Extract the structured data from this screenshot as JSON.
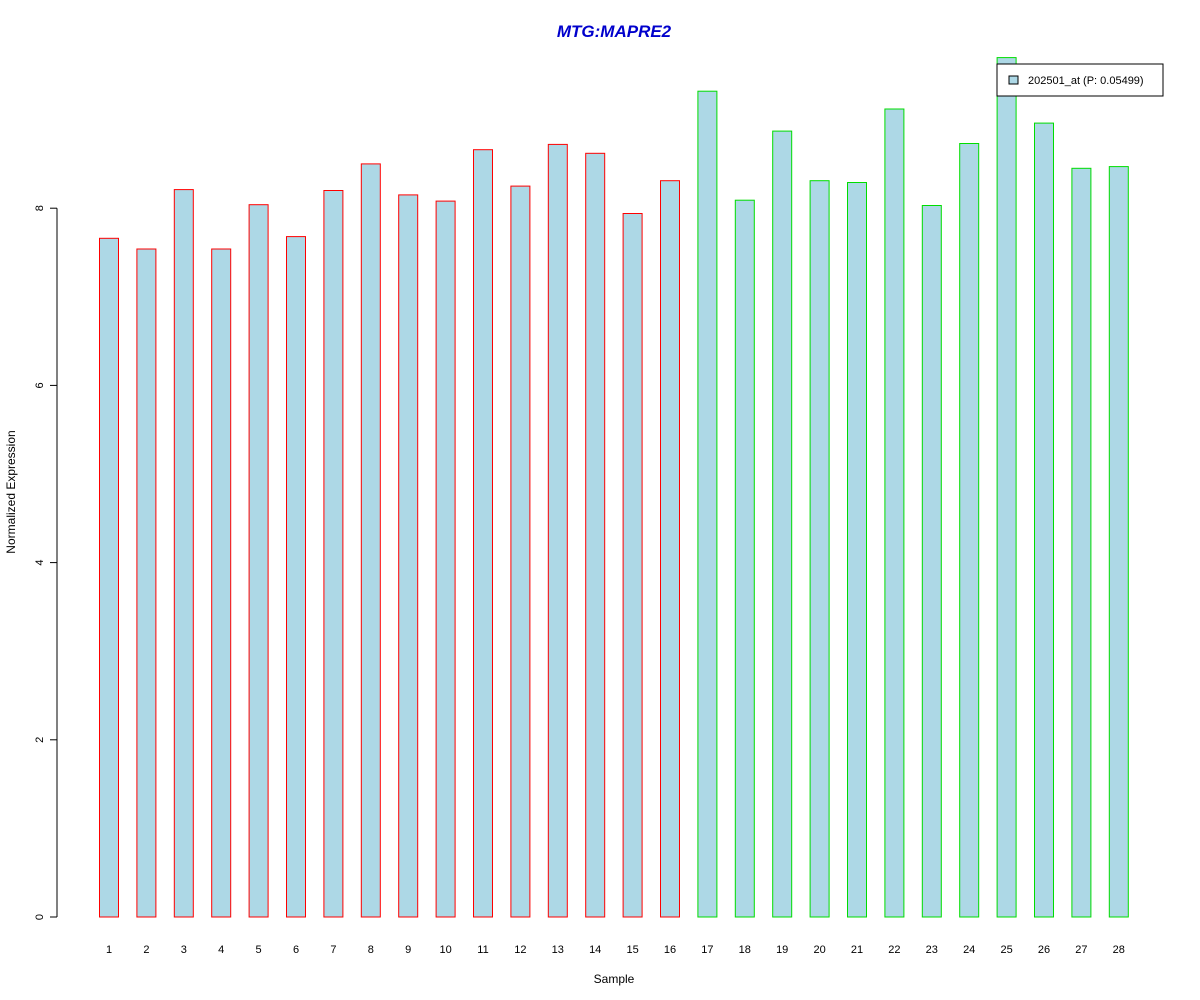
{
  "chart_data": {
    "type": "bar",
    "title": "MTG:MAPRE2",
    "title_color": "#0000CC",
    "xlabel": "Sample",
    "ylabel": "Normalized Expression",
    "categories": [
      "1",
      "2",
      "3",
      "4",
      "5",
      "6",
      "7",
      "8",
      "9",
      "10",
      "11",
      "12",
      "13",
      "14",
      "15",
      "16",
      "17",
      "18",
      "19",
      "20",
      "21",
      "22",
      "23",
      "24",
      "25",
      "26",
      "27",
      "28"
    ],
    "values": [
      7.66,
      7.54,
      8.21,
      7.54,
      8.04,
      7.68,
      8.2,
      8.5,
      8.15,
      8.08,
      8.66,
      8.25,
      8.72,
      8.62,
      7.94,
      8.31,
      9.32,
      8.09,
      8.87,
      8.31,
      8.29,
      9.12,
      8.03,
      8.73,
      9.7,
      8.96,
      8.45,
      8.47
    ],
    "group_colors": [
      "#FF0000",
      "#FF0000",
      "#FF0000",
      "#FF0000",
      "#FF0000",
      "#FF0000",
      "#FF0000",
      "#FF0000",
      "#FF0000",
      "#FF0000",
      "#FF0000",
      "#FF0000",
      "#FF0000",
      "#FF0000",
      "#FF0000",
      "#FF0000",
      "#00DD00",
      "#00DD00",
      "#00DD00",
      "#00DD00",
      "#00DD00",
      "#00DD00",
      "#00DD00",
      "#00DD00",
      "#00DD00",
      "#00DD00",
      "#00DD00",
      "#00DD00"
    ],
    "bar_fill": "#ADD8E6",
    "yticks": [
      0,
      2,
      4,
      6,
      8
    ],
    "ylim": [
      0,
      9.7
    ],
    "grid": false,
    "legend": {
      "label": "202501_at (P: 0.05499)",
      "placement": "top-right"
    }
  }
}
